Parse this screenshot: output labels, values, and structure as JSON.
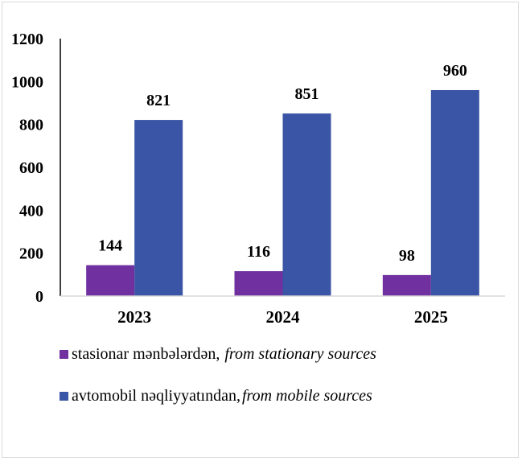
{
  "chart_data": {
    "type": "bar",
    "categories": [
      "2023",
      "2024",
      "2025"
    ],
    "series": [
      {
        "name": "stasionar mənbələrdən,",
        "name_en": "from stationary sources",
        "values": [
          144,
          116,
          98
        ],
        "color": "#7030A0"
      },
      {
        "name": "avtomobil nəqliyyatından,",
        "name_en": "from mobile sources",
        "values": [
          821,
          851,
          960
        ],
        "color": "#3A55A5"
      }
    ],
    "yticks": [
      0,
      200,
      400,
      600,
      800,
      1000,
      1200
    ],
    "ylim": [
      0,
      1200
    ],
    "grid": false,
    "legend_position": "bottom-left"
  }
}
